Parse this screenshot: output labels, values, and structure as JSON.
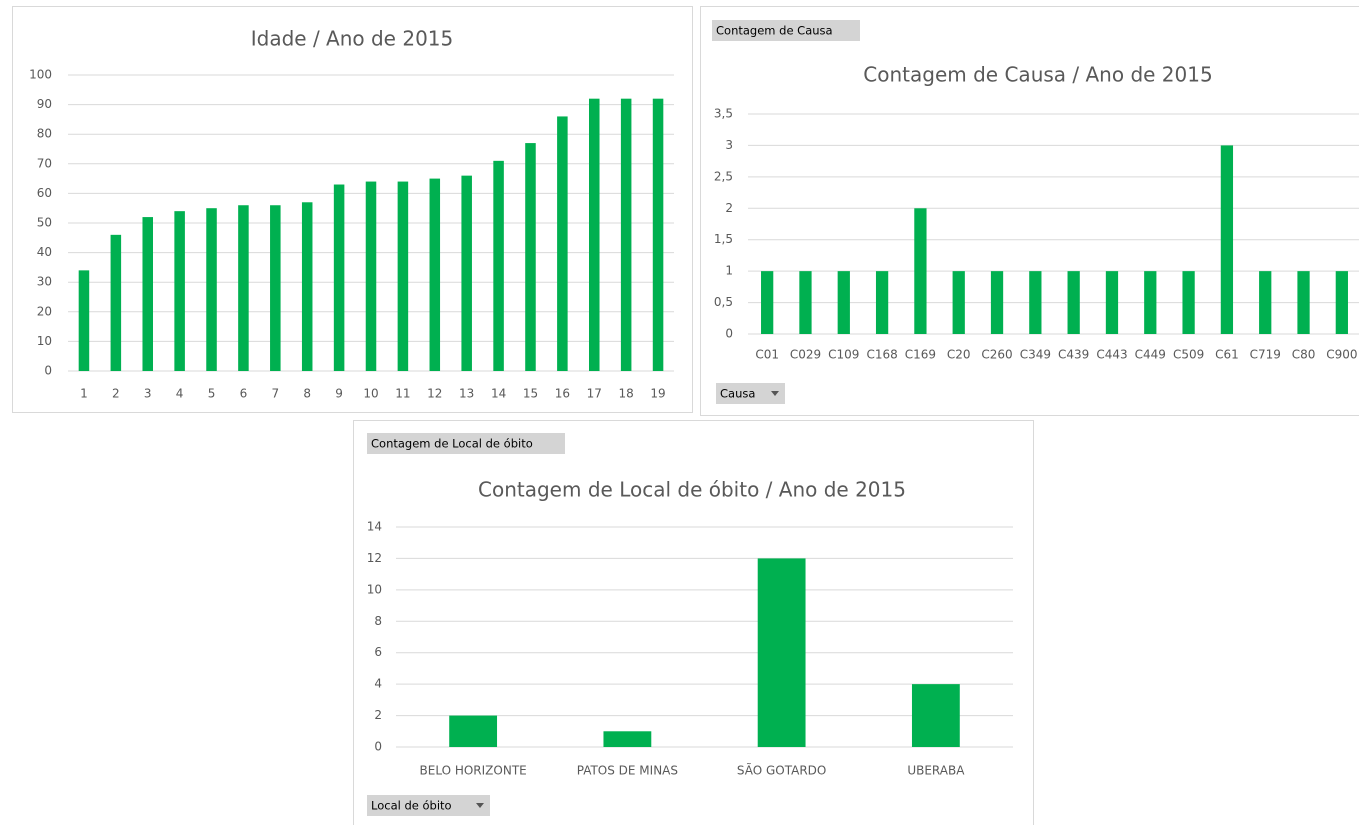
{
  "chart_data": [
    {
      "type": "bar",
      "title": "Idade / Ano de 2015",
      "categories": [
        "1",
        "2",
        "3",
        "4",
        "5",
        "6",
        "7",
        "8",
        "9",
        "10",
        "11",
        "12",
        "13",
        "14",
        "15",
        "16",
        "17",
        "18",
        "19"
      ],
      "values": [
        34,
        46,
        52,
        54,
        55,
        56,
        56,
        57,
        63,
        64,
        64,
        65,
        66,
        71,
        77,
        86,
        92,
        92,
        92
      ],
      "color": "#00b050",
      "ylim": [
        0,
        100
      ],
      "yticks": [
        0,
        10,
        20,
        30,
        40,
        50,
        60,
        70,
        80,
        90,
        100
      ],
      "grid": true
    },
    {
      "type": "bar",
      "title": "Contagem de Causa / Ano de 2015",
      "value_field": "Contagem de Causa",
      "axis_field": "Causa",
      "categories": [
        "C01",
        "C029",
        "C109",
        "C168",
        "C169",
        "C20",
        "C260",
        "C349",
        "C439",
        "C443",
        "C449",
        "C509",
        "C61",
        "C719",
        "C80",
        "C900"
      ],
      "values": [
        1,
        1,
        1,
        1,
        2,
        1,
        1,
        1,
        1,
        1,
        1,
        1,
        3,
        1,
        1,
        1
      ],
      "color": "#00b050",
      "ylim": [
        0,
        3.5
      ],
      "yticks": [
        0,
        {
          "value": 0.5,
          "label": "0,5"
        },
        1,
        {
          "value": 1.5,
          "label": "1,5"
        },
        2,
        {
          "value": 2.5,
          "label": "2,5"
        },
        3,
        {
          "value": 3.5,
          "label": "3,5"
        }
      ],
      "grid": true
    },
    {
      "type": "bar",
      "title": "Contagem de Local de óbito / Ano de 2015",
      "value_field": "Contagem de Local de óbito",
      "axis_field": "Local de óbito",
      "categories": [
        "BELO HORIZONTE",
        "PATOS DE MINAS",
        "SÃO GOTARDO",
        "UBERABA"
      ],
      "values": [
        2,
        1,
        12,
        4
      ],
      "color": "#00b050",
      "ylim": [
        0,
        14
      ],
      "yticks": [
        0,
        2,
        4,
        6,
        8,
        10,
        12,
        14
      ],
      "grid": true
    }
  ]
}
